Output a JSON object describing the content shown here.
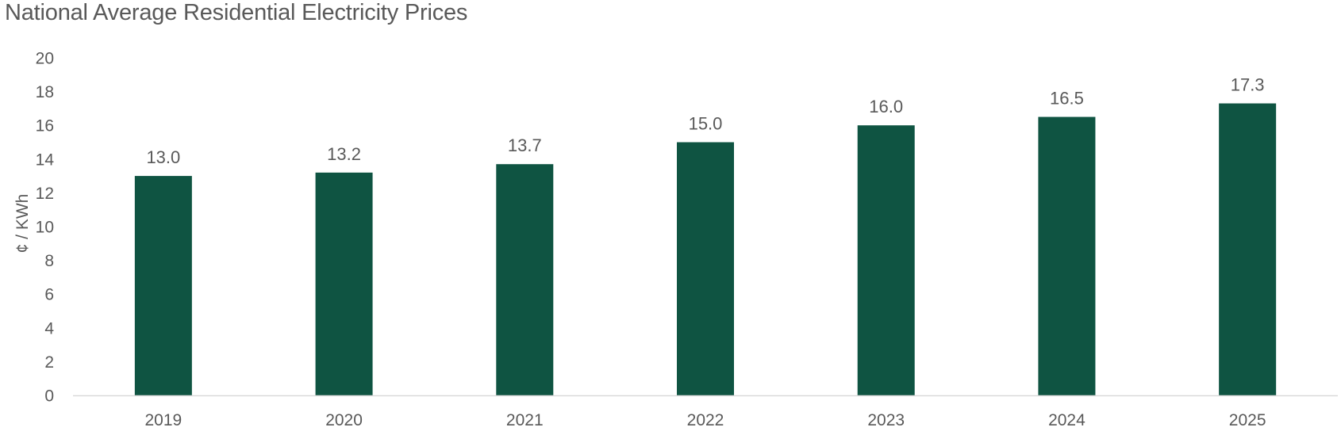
{
  "chart_data": {
    "type": "bar",
    "title": "National Average Residential Electricity Prices",
    "xlabel": "",
    "ylabel": "¢ / KWh",
    "categories": [
      "2019",
      "2020",
      "2021",
      "2022",
      "2023",
      "2024",
      "2025"
    ],
    "values": [
      13.0,
      13.2,
      13.7,
      15.0,
      16.0,
      16.5,
      17.3
    ],
    "data_labels": [
      "13.0",
      "13.2",
      "13.7",
      "15.0",
      "16.0",
      "16.5",
      "17.3"
    ],
    "ylim": [
      0,
      20
    ],
    "yticks": [
      0,
      2,
      4,
      6,
      8,
      10,
      12,
      14,
      16,
      18,
      20
    ],
    "grid": false,
    "legend": "none",
    "colors": {
      "bar": "#0f5442",
      "text": "#595959",
      "axis": "#d9d9d9"
    }
  }
}
